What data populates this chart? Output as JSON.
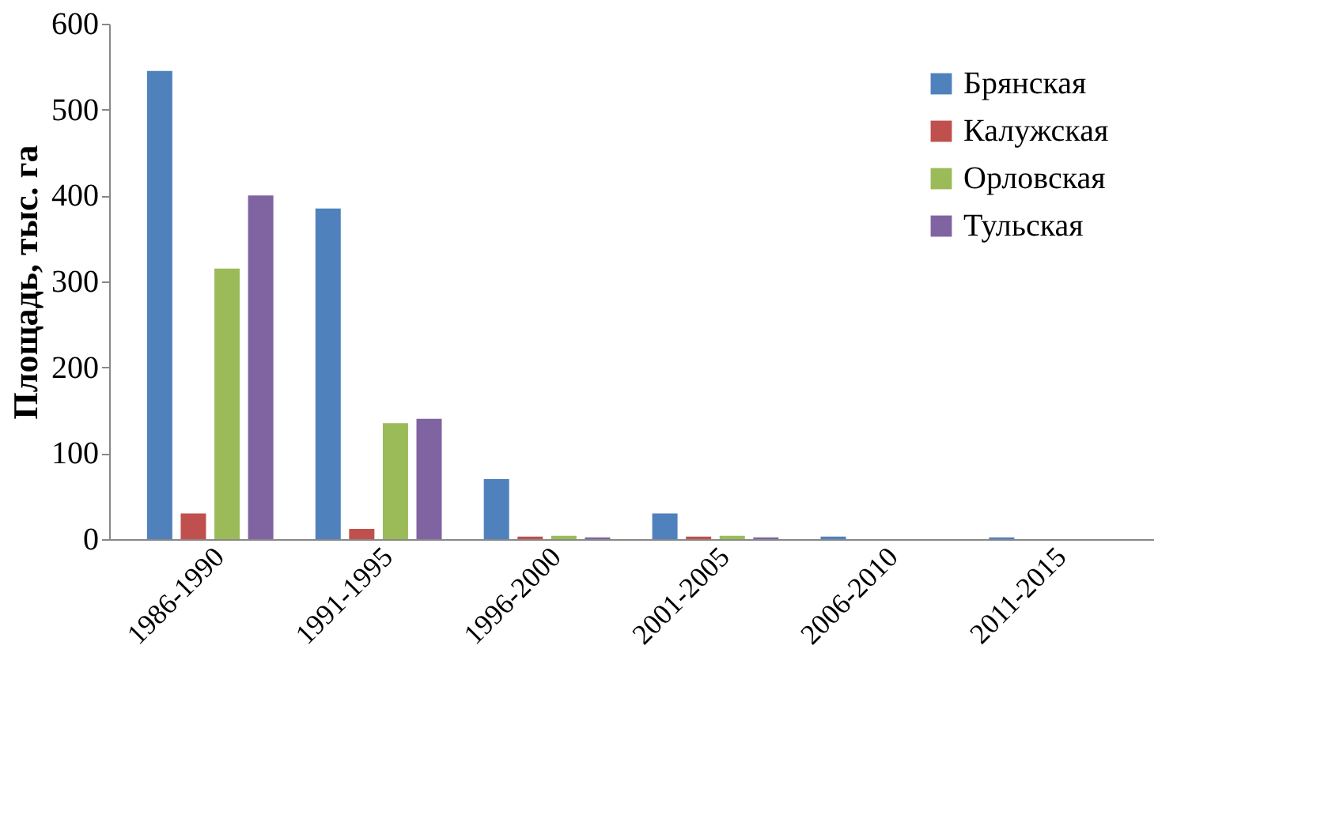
{
  "chart_data": {
    "type": "bar",
    "ylabel": "Площадь, тыс. га",
    "categories": [
      "1986-1990",
      "1991-1995",
      "1996-2000",
      "2001-2005",
      "2006-2010",
      "2011-2015"
    ],
    "series": [
      {
        "name": "Брянская",
        "color": "#4f81bd",
        "values": [
          545,
          385,
          70,
          30,
          3,
          2
        ]
      },
      {
        "name": "Калужская",
        "color": "#c0504d",
        "values": [
          30,
          12,
          3,
          3,
          0,
          0
        ]
      },
      {
        "name": "Орловская",
        "color": "#9bbb59",
        "values": [
          315,
          135,
          4,
          4,
          0,
          0
        ]
      },
      {
        "name": "Тульская",
        "color": "#8064a2",
        "values": [
          400,
          140,
          2,
          2,
          0,
          0
        ]
      }
    ],
    "ylim": [
      0,
      600
    ],
    "yticks": [
      0,
      100,
      200,
      300,
      400,
      500,
      600
    ],
    "grid": false,
    "legend": "top right"
  }
}
